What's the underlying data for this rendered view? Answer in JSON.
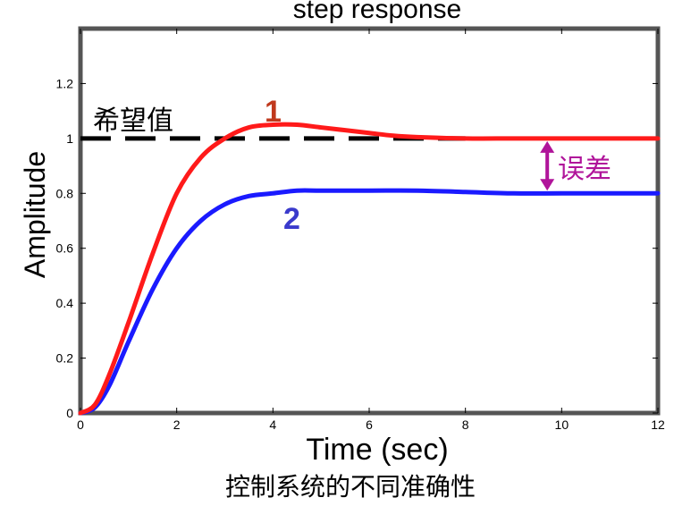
{
  "chart_data": {
    "type": "line",
    "title": "step response",
    "xlabel": "Time (sec)",
    "ylabel": "Amplitude",
    "xlim": [
      0,
      12
    ],
    "ylim": [
      0,
      1.4
    ],
    "x_ticks": [
      "0",
      "2",
      "4",
      "6",
      "8",
      "10",
      "12"
    ],
    "y_ticks": [
      "0",
      "0.2",
      "0.4",
      "0.6",
      "0.8",
      "1",
      "1.2"
    ],
    "grid": false,
    "setpoint": {
      "label": "希望值",
      "value": 1.0,
      "color": "#000000"
    },
    "series": [
      {
        "name": "1",
        "color": "#ff1a1a",
        "x": [
          0,
          0.3,
          0.6,
          1.0,
          1.5,
          2.0,
          2.5,
          3.0,
          3.5,
          4.0,
          4.5,
          5.0,
          5.5,
          6.0,
          6.5,
          7.0,
          8.0,
          9.0,
          10.0,
          11.0,
          12.0
        ],
        "y": [
          0,
          0.03,
          0.14,
          0.33,
          0.58,
          0.8,
          0.93,
          1.0,
          1.04,
          1.05,
          1.05,
          1.04,
          1.03,
          1.02,
          1.01,
          1.005,
          1.0,
          1.0,
          1.0,
          1.0,
          1.0
        ]
      },
      {
        "name": "2",
        "color": "#1a1aff",
        "x": [
          0,
          0.3,
          0.6,
          1.0,
          1.5,
          2.0,
          2.5,
          3.0,
          3.5,
          4.0,
          4.5,
          5.0,
          6.0,
          7.0,
          8.0,
          9.0,
          10.0,
          11.0,
          12.0
        ],
        "y": [
          0,
          0.02,
          0.1,
          0.26,
          0.45,
          0.6,
          0.7,
          0.76,
          0.79,
          0.8,
          0.81,
          0.81,
          0.81,
          0.81,
          0.805,
          0.8,
          0.8,
          0.8,
          0.8
        ]
      }
    ],
    "annotations": [
      {
        "text": "误差",
        "between": [
          0.8,
          1.0
        ],
        "at_x": 9.7,
        "color": "#b0149a"
      }
    ]
  },
  "caption": "控制系统的不同准确性"
}
